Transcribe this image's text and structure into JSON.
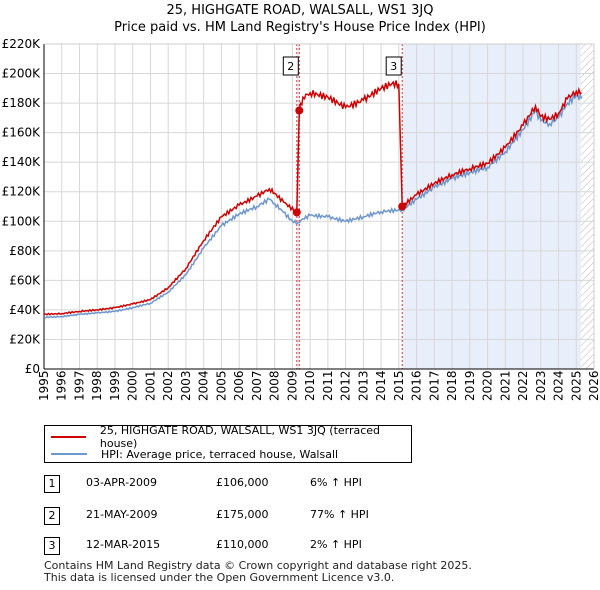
{
  "page": {
    "title_line1": "25, HIGHGATE ROAD, WALSALL, WS1 3JQ",
    "title_line2": "Price paid vs. HM Land Registry's House Price Index (HPI)"
  },
  "legend": {
    "property_label": "25, HIGHGATE ROAD, WALSALL, WS1 3JQ (terraced house)",
    "hpi_label": "HPI: Average price, terraced house, Walsall"
  },
  "transactions": [
    {
      "num": "1",
      "date": "03-APR-2009",
      "price": "£106,000",
      "hpi": "6% ↑ HPI"
    },
    {
      "num": "2",
      "date": "21-MAY-2009",
      "price": "£175,000",
      "hpi": "77% ↑ HPI"
    },
    {
      "num": "3",
      "date": "12-MAR-2015",
      "price": "£110,000",
      "hpi": "2% ↑ HPI"
    }
  ],
  "footer": {
    "line1": "Contains HM Land Registry data © Crown copyright and database right 2025.",
    "line2": "This data is licensed under the Open Government Licence v3.0."
  },
  "colors": {
    "property": "#cc0000",
    "hpi": "#6f97cc",
    "shade": "#e8eefa",
    "grid": "#d7d7d7",
    "marker_line": "#dd3333"
  },
  "chart_data": {
    "type": "line",
    "title": "Price paid vs. HM Land Registry's House Price Index (HPI)",
    "xlabel": "",
    "ylabel": "",
    "xlim": [
      1995,
      2026
    ],
    "ylim": [
      0,
      220000
    ],
    "x_ticks": [
      "1995",
      "1996",
      "1997",
      "1998",
      "1999",
      "2000",
      "2001",
      "2002",
      "2003",
      "2004",
      "2005",
      "2006",
      "2007",
      "2008",
      "2009",
      "2010",
      "2011",
      "2012",
      "2013",
      "2014",
      "2015",
      "2016",
      "2017",
      "2018",
      "2019",
      "2020",
      "2021",
      "2022",
      "2023",
      "2024",
      "2025",
      "2026"
    ],
    "y_ticks": [
      {
        "value": 0,
        "label": "£0"
      },
      {
        "value": 20000,
        "label": "£20K"
      },
      {
        "value": 40000,
        "label": "£40K"
      },
      {
        "value": 60000,
        "label": "£60K"
      },
      {
        "value": 80000,
        "label": "£80K"
      },
      {
        "value": 100000,
        "label": "£100K"
      },
      {
        "value": 120000,
        "label": "£120K"
      },
      {
        "value": 140000,
        "label": "£140K"
      },
      {
        "value": 160000,
        "label": "£160K"
      },
      {
        "value": 180000,
        "label": "£180K"
      },
      {
        "value": 200000,
        "label": "£200K"
      },
      {
        "value": 220000,
        "label": "£220K"
      }
    ],
    "hpi_series": {
      "name": "HPI: Average price, terraced house, Walsall",
      "x": [
        1995,
        1996,
        1997,
        1998,
        1999,
        2000,
        2001,
        2002,
        2003,
        2004,
        2005,
        2006,
        2007,
        2007.7,
        2008,
        2008.5,
        2009.0,
        2009.3,
        2009.5,
        2010,
        2011,
        2012,
        2013,
        2014,
        2015.2,
        2016,
        2017,
        2018,
        2019,
        2020,
        2021,
        2022,
        2022.7,
        2023,
        2023.5,
        2024,
        2024.5,
        2025,
        2025.3
      ],
      "y": [
        35000,
        35500,
        37000,
        38000,
        39000,
        41500,
        44500,
        52000,
        64000,
        82000,
        97000,
        105000,
        110000,
        115000,
        112000,
        106000,
        100000,
        99000,
        101000,
        104000,
        103000,
        100000,
        103000,
        106500,
        107800,
        115000,
        123000,
        129000,
        133000,
        136500,
        147000,
        162000,
        175000,
        168000,
        166000,
        170000,
        180000,
        185000,
        183000
      ]
    },
    "property_series": {
      "name": "25, HIGHGATE ROAD, WALSALL, WS1 3JQ (terraced house)",
      "x": [
        1995,
        1996,
        1997,
        1998,
        1999,
        2000,
        2001,
        2002,
        2003,
        2004,
        2005,
        2006,
        2007,
        2007.7,
        2008,
        2008.5,
        2009.25,
        2009.39,
        2009.6,
        2010,
        2011,
        2012,
        2013,
        2014,
        2014.6,
        2015.0,
        2015.19,
        2016,
        2017,
        2018,
        2019,
        2020,
        2021,
        2022,
        2022.7,
        2023,
        2023.5,
        2024,
        2024.5,
        2025,
        2025.3
      ],
      "y": [
        37000,
        37500,
        39000,
        40000,
        41500,
        44000,
        47000,
        55000,
        68000,
        87000,
        103000,
        111000,
        117000,
        122000,
        119000,
        113000,
        106000,
        175000,
        184000,
        187000,
        184000,
        177000,
        182000,
        190000,
        193000,
        193000,
        110000,
        118000,
        125700,
        131500,
        135600,
        139200,
        150000,
        165000,
        178000,
        171000,
        169000,
        173000,
        183000,
        188000,
        187000
      ]
    },
    "sales": [
      {
        "label": "1",
        "x": 2009.25,
        "y": 106000
      },
      {
        "label": "2",
        "x": 2009.39,
        "y": 175000
      },
      {
        "label": "3",
        "x": 2015.19,
        "y": 110000
      }
    ],
    "shaded_periods": [
      [
        2009.25,
        2009.39
      ],
      [
        2015.19,
        2025.25
      ]
    ],
    "hatched_period": [
      2025.25,
      2026
    ]
  }
}
